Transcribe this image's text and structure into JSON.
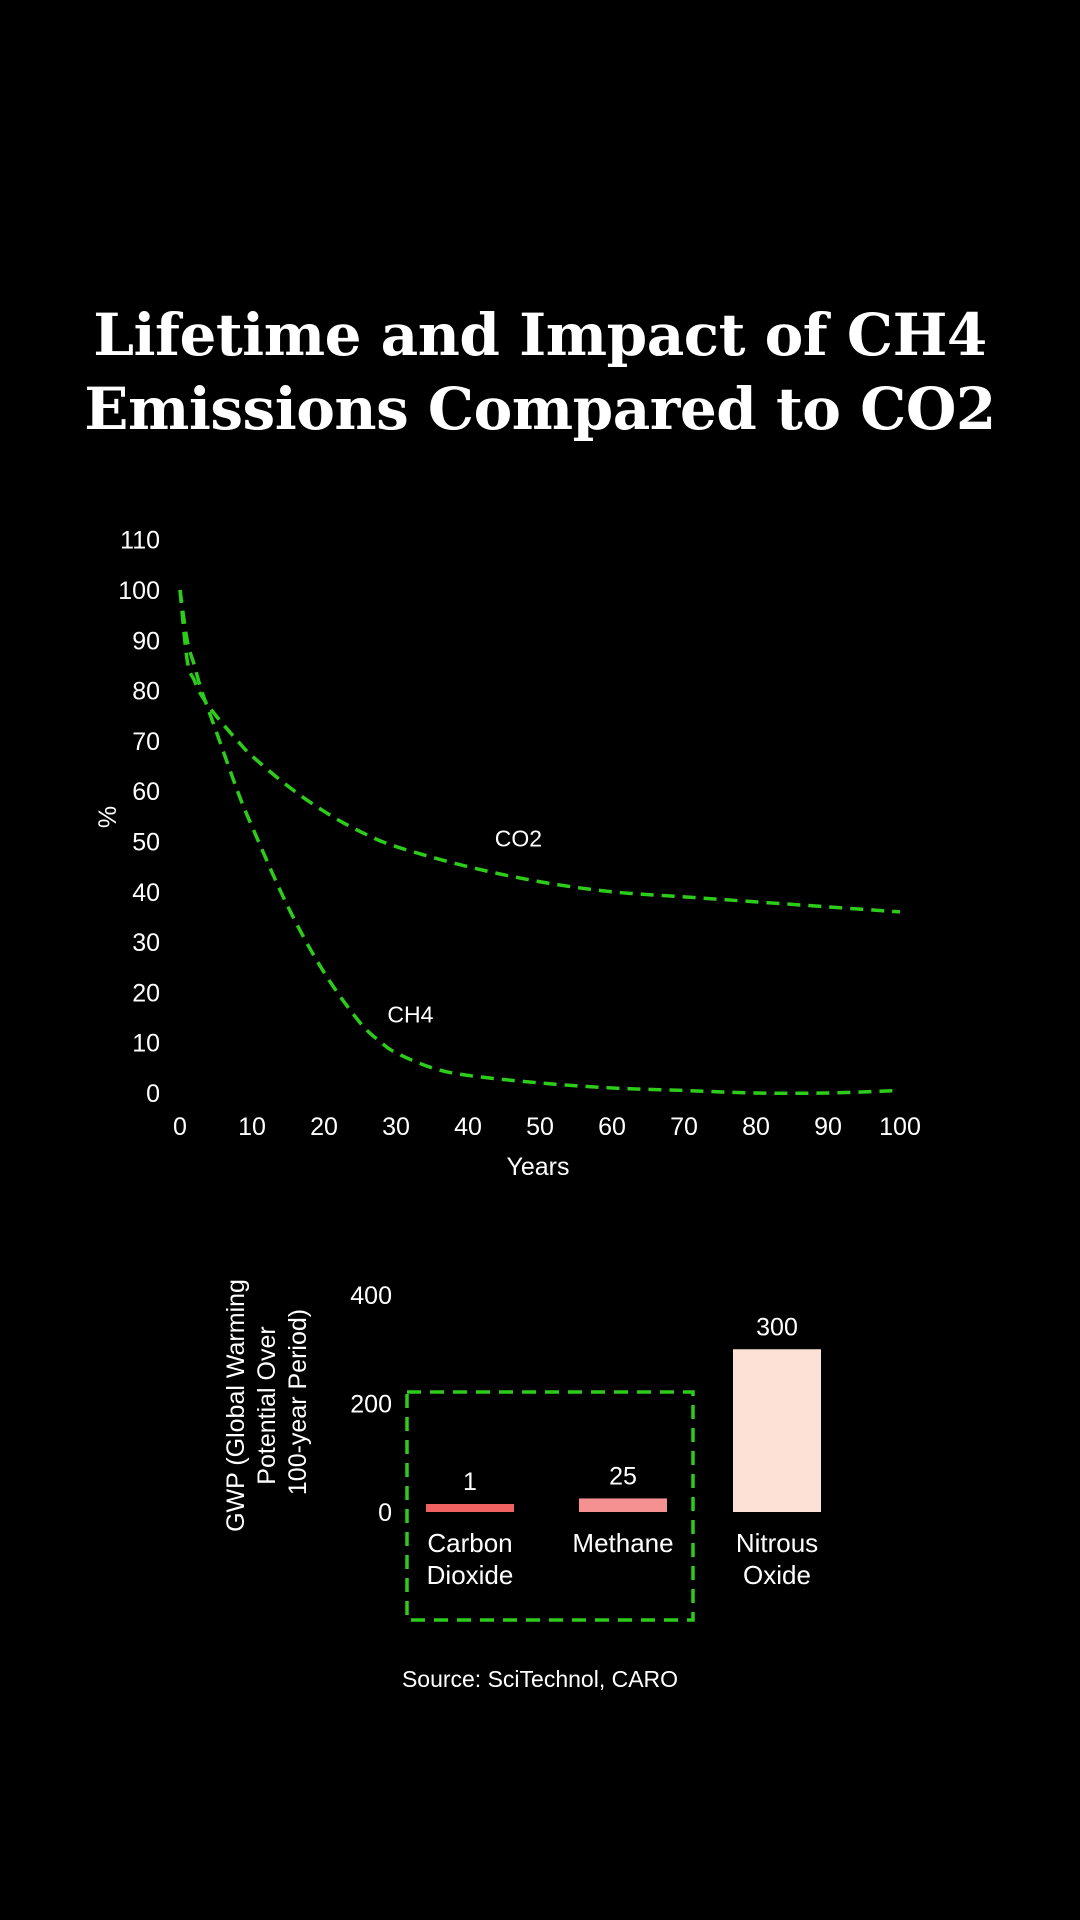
{
  "title_lines": [
    "Lifetime and Impact of CH4",
    "Emissions Compared to CO2"
  ],
  "source": "Source: SciTechnol, CARO",
  "colors": {
    "background": "#000000",
    "text": "#ffffff",
    "line": "#2ecc1a",
    "bar_carbon_dioxide": "#f06262",
    "bar_methane": "#f59191",
    "bar_nitrous_oxide": "#fde0d6",
    "highlight_box": "#2ecc1a"
  },
  "chart_data": [
    {
      "type": "line",
      "title": "",
      "xlabel": "Years",
      "ylabel": "%",
      "xlim": [
        0,
        100
      ],
      "ylim": [
        0,
        110
      ],
      "x_ticks": [
        0,
        10,
        20,
        30,
        40,
        50,
        60,
        70,
        80,
        90,
        100
      ],
      "y_ticks": [
        0,
        10,
        20,
        30,
        40,
        50,
        60,
        70,
        80,
        90,
        100,
        110
      ],
      "grid": false,
      "legend": "none",
      "series": [
        {
          "name": "CO2",
          "x": [
            0,
            1,
            2,
            3,
            5,
            8,
            10,
            15,
            20,
            25,
            30,
            40,
            50,
            60,
            70,
            80,
            90,
            100
          ],
          "y": [
            100,
            86,
            82,
            79,
            75,
            70,
            67,
            61,
            56,
            52,
            49,
            45,
            42,
            40,
            39,
            38,
            37,
            36
          ]
        },
        {
          "name": "CH4",
          "x": [
            0,
            1,
            2,
            3,
            5,
            8,
            10,
            15,
            20,
            25,
            28,
            30,
            35,
            40,
            50,
            60,
            70,
            80,
            90,
            100
          ],
          "y": [
            100,
            90,
            85,
            80,
            72,
            60,
            53,
            37,
            24,
            14,
            10,
            8,
            5,
            3.5,
            2,
            1,
            0.5,
            0,
            0,
            0.5
          ]
        }
      ]
    },
    {
      "type": "bar",
      "title": "",
      "ylabel": "GWP (Global Warming Potential Over 100-year Period)",
      "categories": [
        "Carbon Dioxide",
        "Methane",
        "Nitrous Oxide"
      ],
      "category_lines": [
        [
          "Carbon",
          "Dioxide"
        ],
        [
          "Methane"
        ],
        [
          "Nitrous",
          "Oxide"
        ]
      ],
      "values": [
        1,
        25,
        300
      ],
      "y_ticks": [
        0,
        200,
        400
      ],
      "ylim": [
        0,
        400
      ],
      "highlighted_categories": [
        "Carbon Dioxide",
        "Methane"
      ]
    }
  ]
}
